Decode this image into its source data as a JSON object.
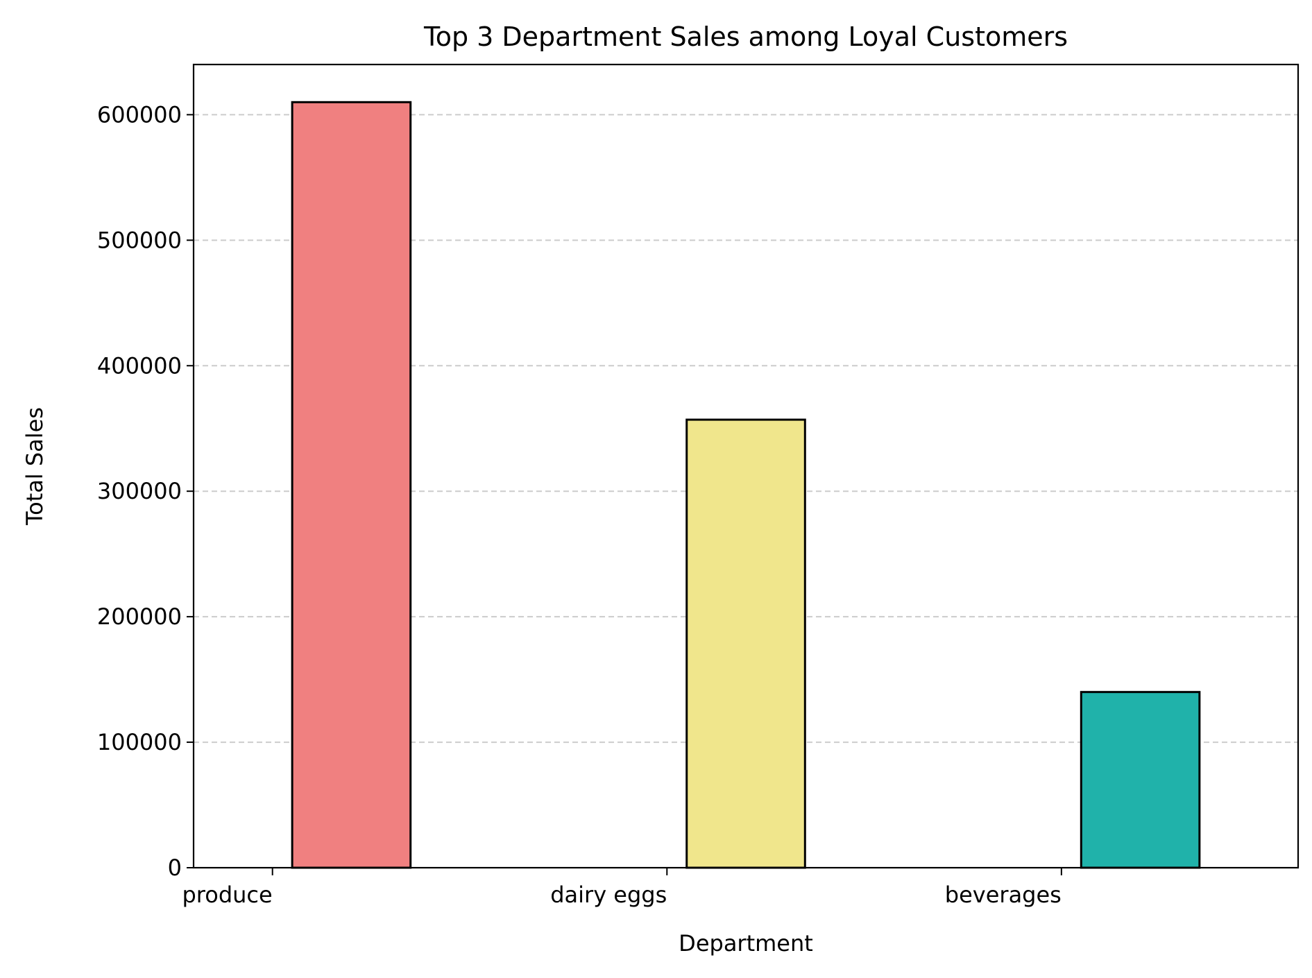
{
  "chart_data": {
    "type": "bar",
    "title": "Top 3 Department Sales among Loyal Customers",
    "xlabel": "Department",
    "ylabel": "Total Sales",
    "categories": [
      "produce",
      "dairy eggs",
      "beverages"
    ],
    "values": [
      610000,
      357000,
      140000
    ],
    "colors": [
      "#F08080",
      "#F0E68C",
      "#20B2AA"
    ],
    "bar_edge_color": "#000000",
    "ylim": [
      0,
      640000
    ],
    "yticks": [
      0,
      100000,
      200000,
      300000,
      400000,
      500000,
      600000
    ],
    "ytick_labels": [
      "0",
      "100000",
      "200000",
      "300000",
      "400000",
      "500000",
      "600000"
    ],
    "grid": {
      "axis": "y",
      "style": "dashed",
      "color": "#cccccc"
    },
    "legend": "none"
  }
}
